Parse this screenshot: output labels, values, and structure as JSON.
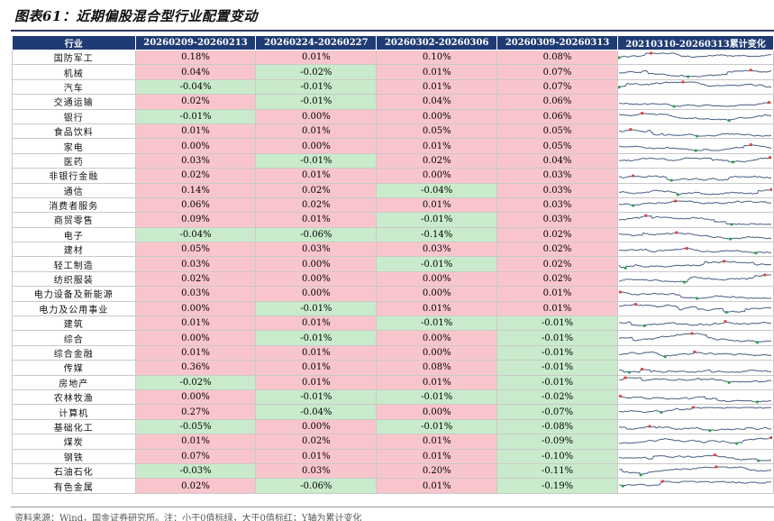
{
  "title": "图表61：近期偏股混合型行业配置变动",
  "headers": [
    "行业",
    "20260209-20260213",
    "20260224-20260227",
    "20260302-20260306",
    "20260309-20260313",
    "20210310-20260313累计变化"
  ],
  "rows": [
    {
      "industry": "国防军工",
      "v": [
        "0.18%",
        "0.01%",
        "0.10%",
        "0.08%"
      ]
    },
    {
      "industry": "机械",
      "v": [
        "0.04%",
        "-0.02%",
        "0.01%",
        "0.07%"
      ]
    },
    {
      "industry": "汽车",
      "v": [
        "-0.04%",
        "-0.01%",
        "0.01%",
        "0.07%"
      ]
    },
    {
      "industry": "交通运输",
      "v": [
        "0.02%",
        "-0.01%",
        "0.04%",
        "0.06%"
      ]
    },
    {
      "industry": "银行",
      "v": [
        "-0.01%",
        "0.00%",
        "0.00%",
        "0.06%"
      ]
    },
    {
      "industry": "食品饮料",
      "v": [
        "0.01%",
        "0.01%",
        "0.05%",
        "0.05%"
      ]
    },
    {
      "industry": "家电",
      "v": [
        "0.00%",
        "0.00%",
        "0.01%",
        "0.05%"
      ]
    },
    {
      "industry": "医药",
      "v": [
        "0.03%",
        "-0.01%",
        "0.02%",
        "0.04%"
      ]
    },
    {
      "industry": "非银行金融",
      "v": [
        "0.02%",
        "0.01%",
        "0.00%",
        "0.03%"
      ]
    },
    {
      "industry": "通信",
      "v": [
        "0.14%",
        "0.02%",
        "-0.04%",
        "0.03%"
      ]
    },
    {
      "industry": "消费者服务",
      "v": [
        "0.06%",
        "0.02%",
        "0.01%",
        "0.03%"
      ]
    },
    {
      "industry": "商贸零售",
      "v": [
        "0.09%",
        "0.01%",
        "-0.01%",
        "0.03%"
      ]
    },
    {
      "industry": "电子",
      "v": [
        "-0.04%",
        "-0.06%",
        "-0.14%",
        "0.02%"
      ]
    },
    {
      "industry": "建材",
      "v": [
        "0.05%",
        "0.03%",
        "0.03%",
        "0.02%"
      ]
    },
    {
      "industry": "轻工制造",
      "v": [
        "0.03%",
        "0.00%",
        "-0.01%",
        "0.02%"
      ]
    },
    {
      "industry": "纺织服装",
      "v": [
        "0.02%",
        "0.00%",
        "0.00%",
        "0.02%"
      ]
    },
    {
      "industry": "电力设备及新能源",
      "v": [
        "0.03%",
        "0.00%",
        "0.00%",
        "0.01%"
      ]
    },
    {
      "industry": "电力及公用事业",
      "v": [
        "0.00%",
        "-0.01%",
        "0.01%",
        "0.01%"
      ]
    },
    {
      "industry": "建筑",
      "v": [
        "0.01%",
        "0.01%",
        "-0.01%",
        "-0.01%"
      ]
    },
    {
      "industry": "综合",
      "v": [
        "0.00%",
        "-0.01%",
        "0.00%",
        "-0.01%"
      ]
    },
    {
      "industry": "综合金融",
      "v": [
        "0.01%",
        "0.01%",
        "0.00%",
        "-0.01%"
      ]
    },
    {
      "industry": "传媒",
      "v": [
        "0.36%",
        "0.01%",
        "0.08%",
        "-0.01%"
      ]
    },
    {
      "industry": "房地产",
      "v": [
        "-0.02%",
        "0.01%",
        "0.01%",
        "-0.01%"
      ]
    },
    {
      "industry": "农林牧渔",
      "v": [
        "0.00%",
        "-0.01%",
        "-0.01%",
        "-0.02%"
      ]
    },
    {
      "industry": "计算机",
      "v": [
        "0.27%",
        "-0.04%",
        "0.00%",
        "-0.07%"
      ]
    },
    {
      "industry": "基础化工",
      "v": [
        "-0.05%",
        "0.00%",
        "-0.01%",
        "-0.08%"
      ]
    },
    {
      "industry": "煤炭",
      "v": [
        "0.01%",
        "0.02%",
        "0.01%",
        "-0.09%"
      ]
    },
    {
      "industry": "钢铁",
      "v": [
        "0.07%",
        "0.01%",
        "0.01%",
        "-0.10%"
      ]
    },
    {
      "industry": "石油石化",
      "v": [
        "-0.03%",
        "0.03%",
        "0.20%",
        "-0.11%"
      ]
    },
    {
      "industry": "有色金属",
      "v": [
        "0.02%",
        "-0.06%",
        "0.01%",
        "-0.19%"
      ]
    }
  ],
  "colors": {
    "header_bg": "#1f3b73",
    "positive_bg": "#f9c5cc",
    "negative_bg": "#c9ebcb",
    "spark_line": "#4a5f86",
    "spark_high": "#e0413a",
    "spark_low": "#2fa34a"
  },
  "footer": "资料来源：Wind，国金证券研究所。注：小于0值标绿，大于0值标红；Y轴为累计变化"
}
